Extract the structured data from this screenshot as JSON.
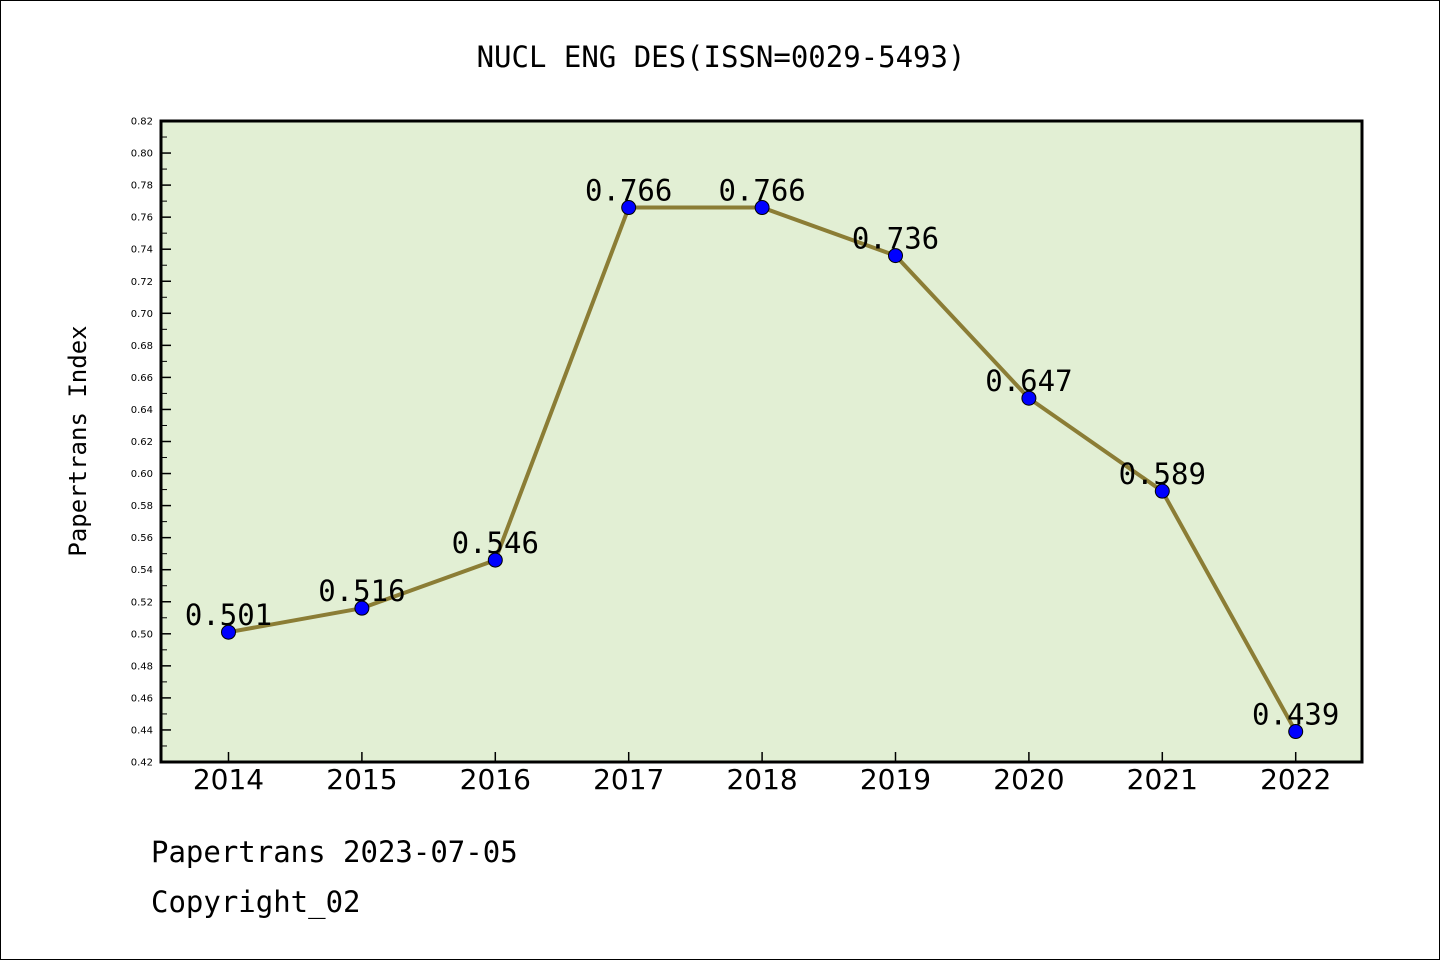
{
  "chart_data": {
    "type": "line",
    "title": "NUCL ENG DES(ISSN=0029-5493)",
    "ylabel": "Papertrans Index",
    "xlabel": "",
    "categories": [
      "2014",
      "2015",
      "2016",
      "2017",
      "2018",
      "2019",
      "2020",
      "2021",
      "2022"
    ],
    "series": [
      {
        "values": [
          0.501,
          0.516,
          0.546,
          0.766,
          0.766,
          0.736,
          0.647,
          0.589,
          0.439
        ],
        "labels": [
          "0.501",
          "0.516",
          "0.546",
          "0.766",
          "0.766",
          "0.736",
          "0.647",
          "0.589",
          "0.439"
        ]
      }
    ],
    "ylim": [
      0.42,
      0.82
    ],
    "ytick_step": 0.02,
    "ytick_labels": [
      "0.42",
      "0.44",
      "0.46",
      "0.48",
      "0.50",
      "0.52",
      "0.54",
      "0.56",
      "0.58",
      "0.60",
      "0.62",
      "0.64",
      "0.66",
      "0.68",
      "0.70",
      "0.72",
      "0.74",
      "0.76",
      "0.78",
      "0.80",
      "0.82"
    ],
    "grid": false,
    "legend": "none",
    "colors": {
      "plot_background": "#e2efd4",
      "line": "#8b7d35",
      "marker": "#0000ff",
      "axes": "#000000"
    }
  },
  "footer": {
    "line1": "Papertrans 2023-07-05",
    "line2": "Copyright_02"
  }
}
